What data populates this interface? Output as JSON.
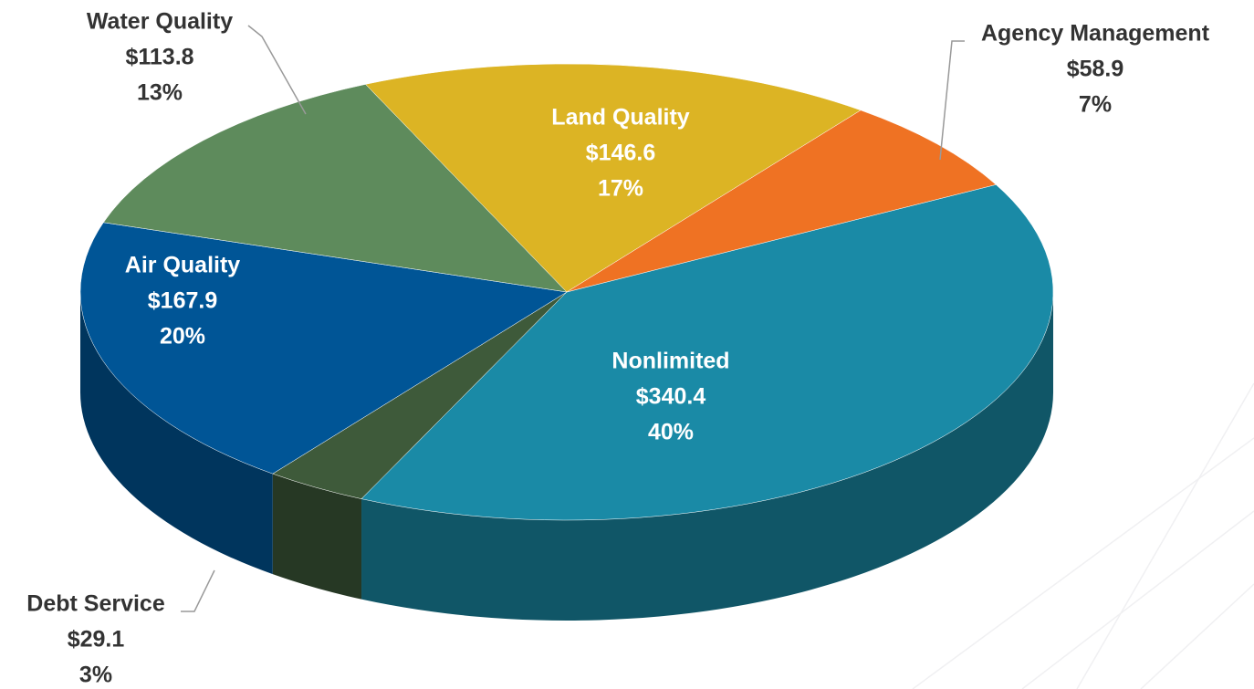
{
  "chart_data": {
    "type": "pie3d",
    "categories": [
      "Nonlimited",
      "Debt Service",
      "Air Quality",
      "Water Quality",
      "Land Quality",
      "Agency Management"
    ],
    "values": [
      340.4,
      29.1,
      167.9,
      113.8,
      146.6,
      58.9
    ],
    "value_labels": [
      "$340.4",
      "$29.1",
      "$167.9",
      "$113.8",
      "$146.6",
      "$58.9"
    ],
    "percents": [
      40,
      3,
      20,
      13,
      17,
      7
    ],
    "percent_labels": [
      "40%",
      "3%",
      "20%",
      "13%",
      "17%",
      "7%"
    ],
    "colors": [
      "#1a8aa6",
      "#3e5a3a",
      "#005596",
      "#5e8b5c",
      "#dcb424",
      "#ef7223"
    ]
  }
}
